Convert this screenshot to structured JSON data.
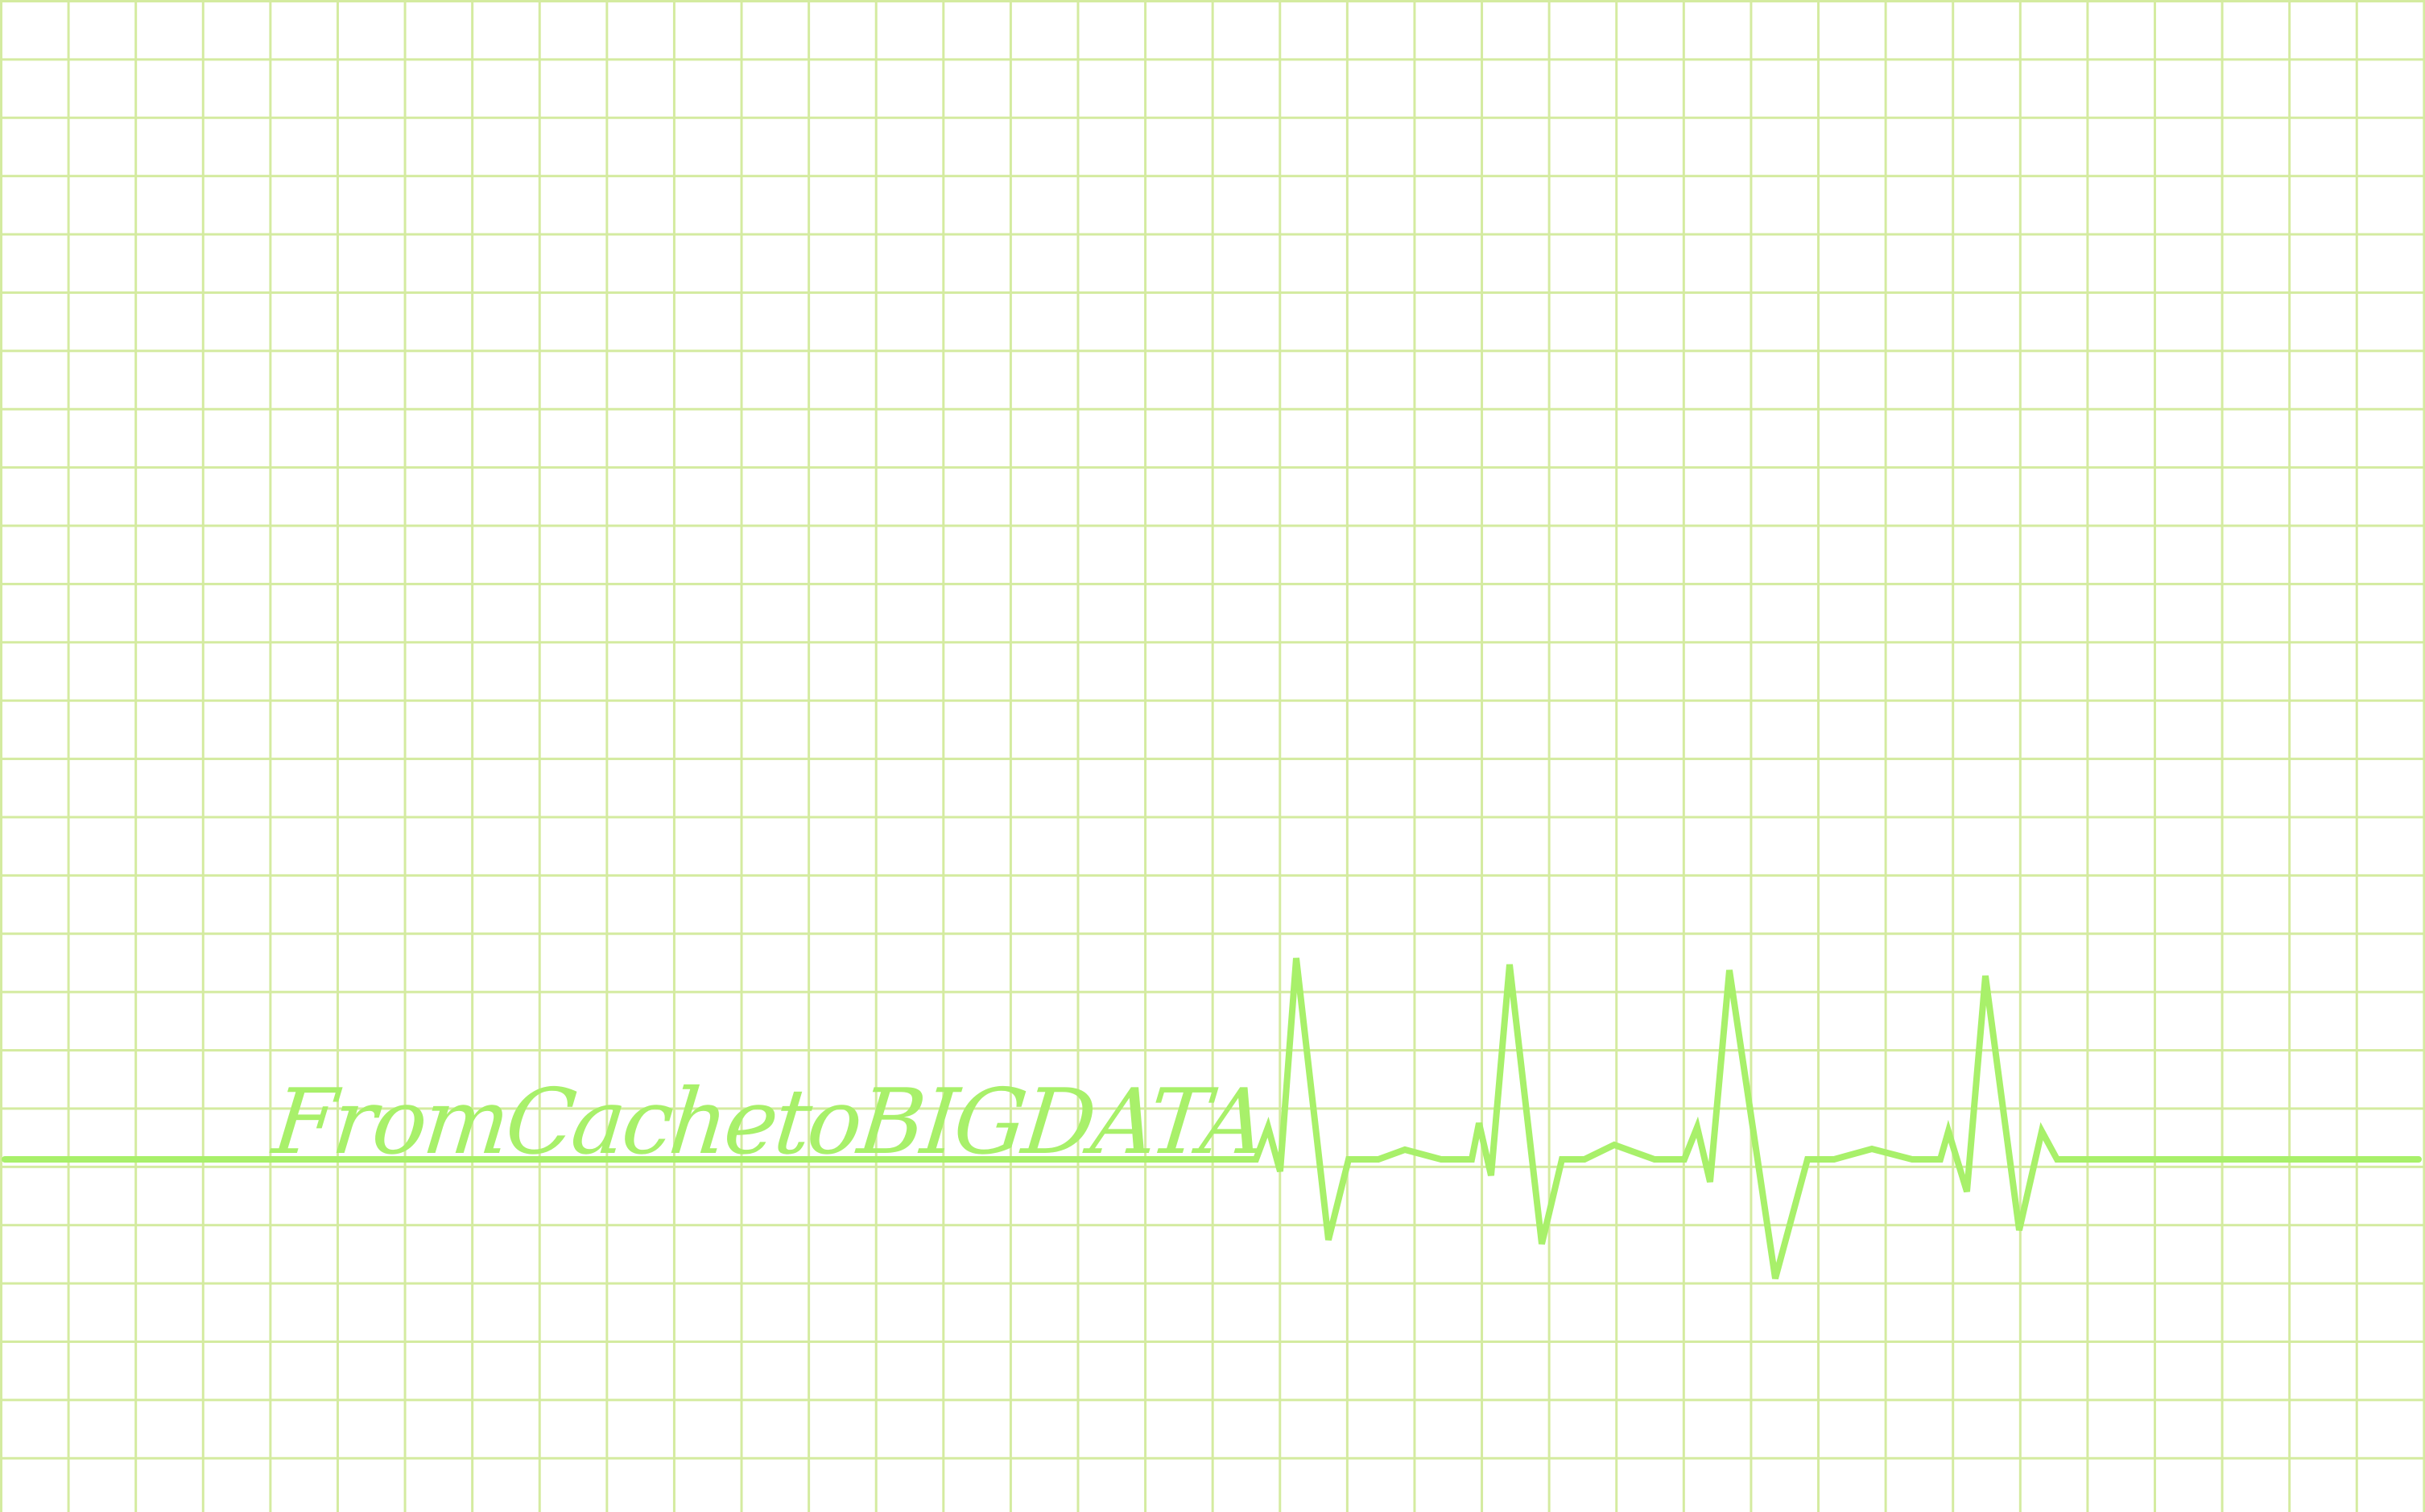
{
  "logo": {
    "text": "FromCachetoBIGDATA",
    "color": "#a8f06a"
  },
  "colors": {
    "grid": "#d4eba0",
    "trace": "#a8f06a",
    "background": "#ffffff"
  }
}
